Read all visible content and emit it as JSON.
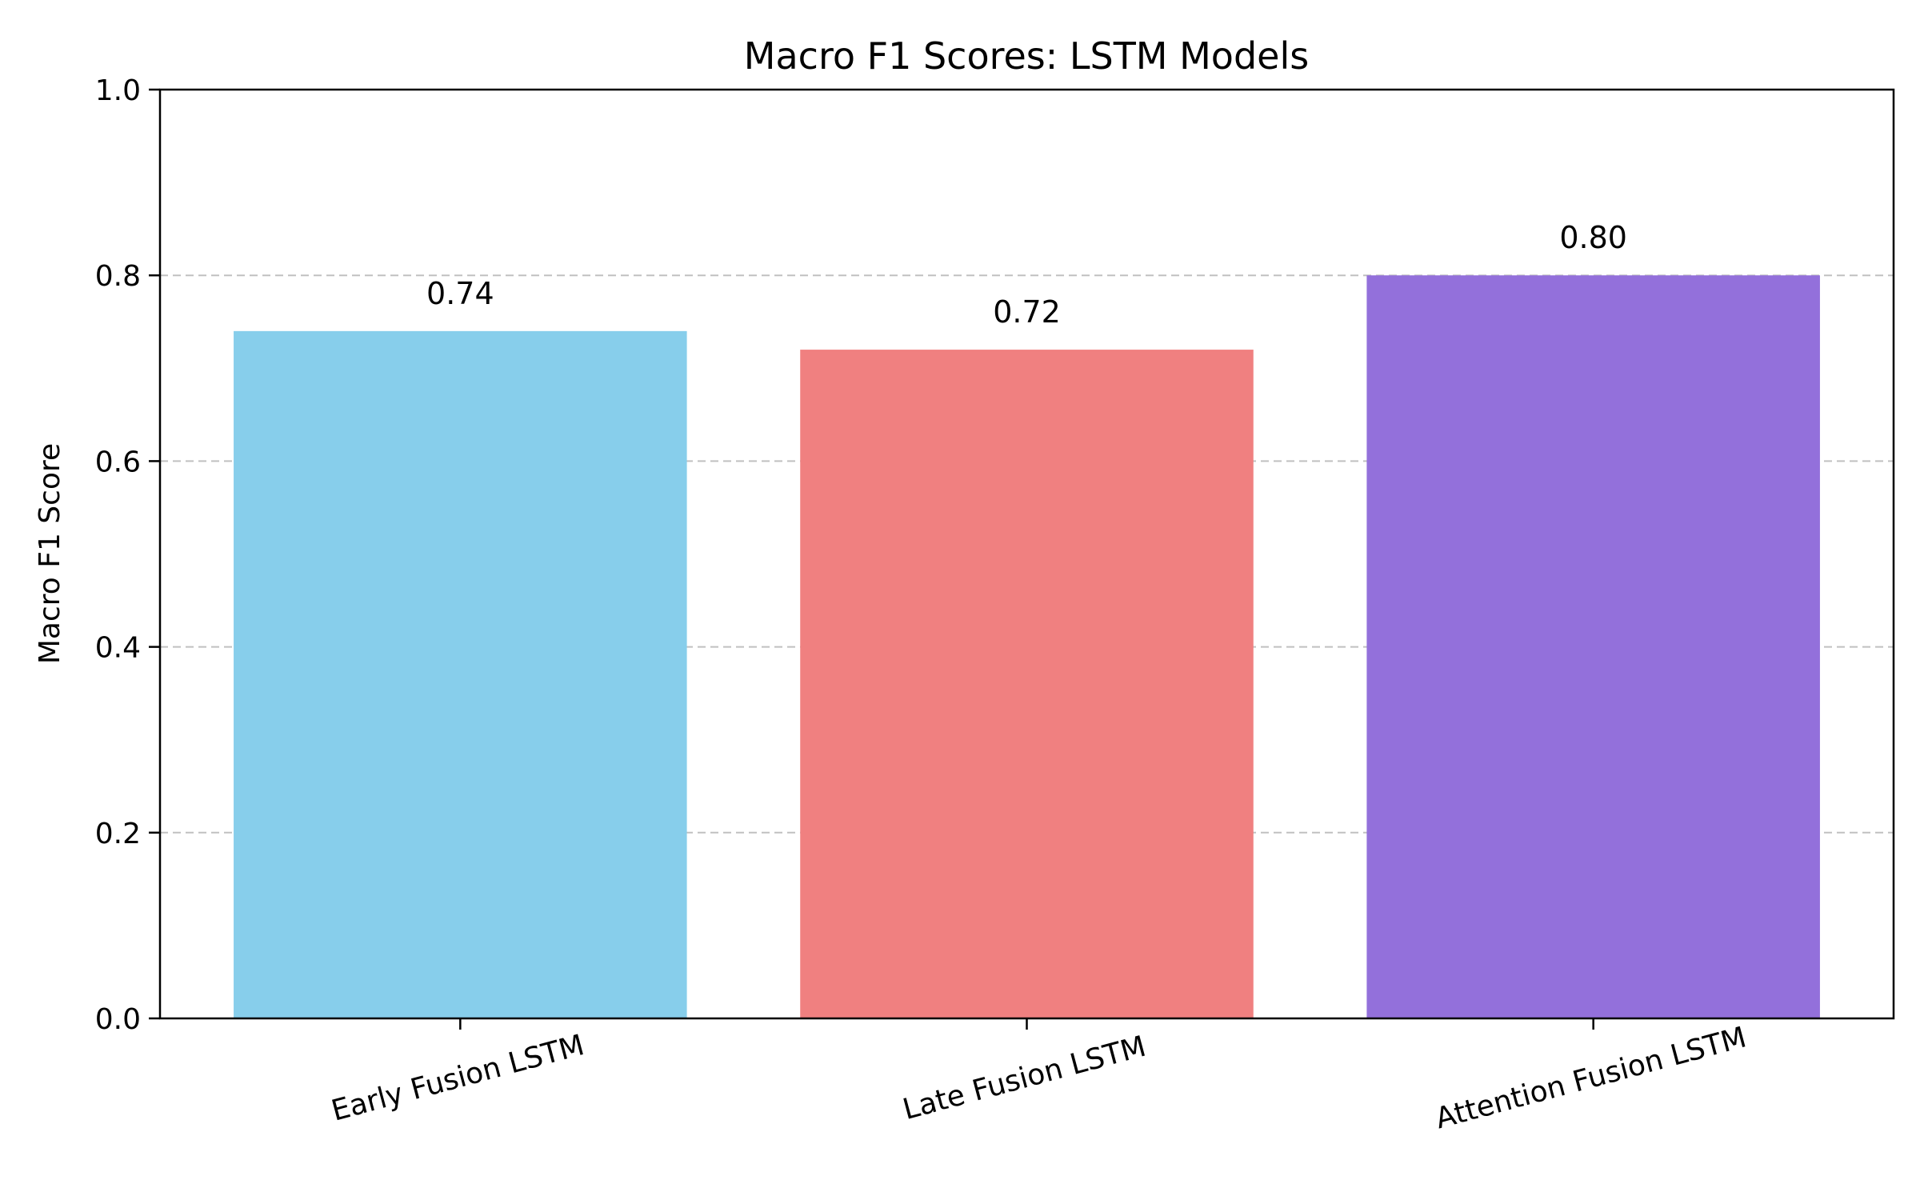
{
  "chart_data": {
    "type": "bar",
    "title": "Macro F1 Scores: LSTM Models",
    "xlabel": "",
    "ylabel": "Macro F1 Score",
    "categories": [
      "Early Fusion LSTM",
      "Late Fusion LSTM",
      "Attention Fusion LSTM"
    ],
    "values": [
      0.74,
      0.72,
      0.8
    ],
    "value_labels": [
      "0.74",
      "0.72",
      "0.80"
    ],
    "colors": [
      "#87CEEB",
      "#F08080",
      "#9370DB"
    ],
    "ylim": [
      0,
      1.0
    ],
    "yticks": [
      0.0,
      0.2,
      0.4,
      0.6,
      0.8,
      1.0
    ],
    "ytick_labels": [
      "0.0",
      "0.2",
      "0.4",
      "0.6",
      "0.8",
      "1.0"
    ],
    "xtick_rotation_deg": 15,
    "grid": {
      "axis": "y",
      "style": "dashed",
      "color": "#c0c0c0"
    }
  }
}
